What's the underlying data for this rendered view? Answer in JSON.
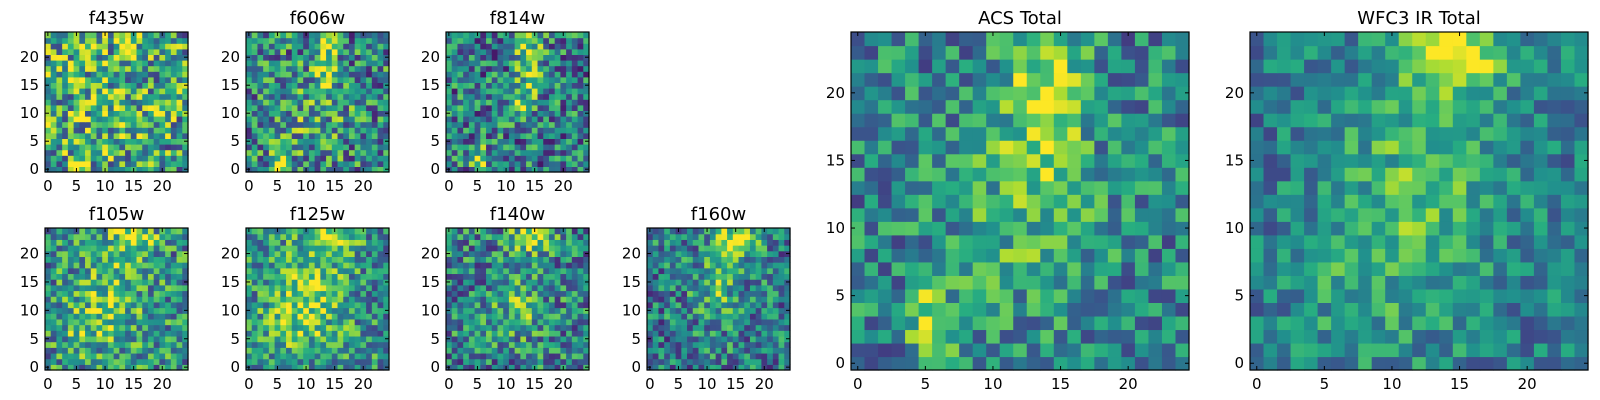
{
  "chart_data": [
    {
      "type": "heatmap",
      "title": "f435w",
      "xticks": [
        "0",
        "5",
        "10",
        "15",
        "20"
      ],
      "yticks": [
        "0",
        "5",
        "10",
        "15",
        "20"
      ],
      "xlim": [
        -0.5,
        24.5
      ],
      "ylim": [
        -0.5,
        24.5
      ],
      "grid": false,
      "colormap": "viridis",
      "pixels": 25,
      "seed": 11,
      "features": [
        {
          "x": 5.5,
          "y": 0.6,
          "w": 0.9,
          "h": 1.6,
          "a": 0.6
        },
        {
          "x": 14.0,
          "y": 22.0,
          "w": 1.2,
          "h": 2.0,
          "a": 0.25
        },
        {
          "x": 10,
          "y": 12,
          "w": 8,
          "h": 8,
          "a": 0.12
        }
      ],
      "base": 0.55,
      "noise": 0.42
    },
    {
      "type": "heatmap",
      "title": "f606w",
      "xticks": [
        "0",
        "5",
        "10",
        "15",
        "20"
      ],
      "yticks": [
        "0",
        "5",
        "10",
        "15",
        "20"
      ],
      "xlim": [
        -0.5,
        24.5
      ],
      "ylim": [
        -0.5,
        24.5
      ],
      "grid": false,
      "colormap": "viridis",
      "pixels": 25,
      "seed": 23,
      "features": [
        {
          "x": 5.5,
          "y": 1.0,
          "w": 0.9,
          "h": 2.0,
          "a": 0.55
        },
        {
          "x": 13.5,
          "y": 20.0,
          "w": 1.4,
          "h": 4.5,
          "a": 0.4
        },
        {
          "x": 10,
          "y": 10,
          "w": 6,
          "h": 6,
          "a": 0.15
        }
      ],
      "base": 0.45,
      "noise": 0.38
    },
    {
      "type": "heatmap",
      "title": "f814w",
      "xticks": [
        "0",
        "5",
        "10",
        "15",
        "20"
      ],
      "yticks": [
        "0",
        "5",
        "10",
        "15",
        "20"
      ],
      "xlim": [
        -0.5,
        24.5
      ],
      "ylim": [
        -0.5,
        24.5
      ],
      "grid": false,
      "colormap": "viridis",
      "pixels": 25,
      "seed": 37,
      "features": [
        {
          "x": 5.5,
          "y": 1.2,
          "w": 0.9,
          "h": 2.2,
          "a": 0.55
        },
        {
          "x": 14.0,
          "y": 20.0,
          "w": 1.5,
          "h": 4.5,
          "a": 0.5
        },
        {
          "x": 12.5,
          "y": 11.0,
          "w": 1.5,
          "h": 2.0,
          "a": 0.3
        }
      ],
      "base": 0.42,
      "noise": 0.36
    },
    {
      "type": "heatmap",
      "title": "f105w",
      "xticks": [
        "0",
        "5",
        "10",
        "15",
        "20"
      ],
      "yticks": [
        "0",
        "5",
        "10",
        "15",
        "20"
      ],
      "xlim": [
        -0.5,
        24.5
      ],
      "ylim": [
        -0.5,
        24.5
      ],
      "grid": false,
      "colormap": "viridis",
      "pixels": 25,
      "seed": 41,
      "features": [
        {
          "x": 15.0,
          "y": 23.0,
          "w": 2.5,
          "h": 1.8,
          "a": 0.45
        },
        {
          "x": 11,
          "y": 13,
          "w": 4,
          "h": 6,
          "a": 0.25
        },
        {
          "x": 6,
          "y": 6,
          "w": 3,
          "h": 3,
          "a": 0.15
        }
      ],
      "base": 0.5,
      "noise": 0.34
    },
    {
      "type": "heatmap",
      "title": "f125w",
      "xticks": [
        "0",
        "5",
        "10",
        "15",
        "20"
      ],
      "yticks": [
        "0",
        "5",
        "10",
        "15",
        "20"
      ],
      "xlim": [
        -0.5,
        24.5
      ],
      "ylim": [
        -0.5,
        24.5
      ],
      "grid": false,
      "colormap": "viridis",
      "pixels": 25,
      "seed": 53,
      "features": [
        {
          "x": 14.5,
          "y": 23.0,
          "w": 2.5,
          "h": 1.8,
          "a": 0.45
        },
        {
          "x": 11,
          "y": 13,
          "w": 4,
          "h": 7,
          "a": 0.3
        },
        {
          "x": 6,
          "y": 8,
          "w": 3,
          "h": 4,
          "a": 0.15
        }
      ],
      "base": 0.5,
      "noise": 0.32
    },
    {
      "type": "heatmap",
      "title": "f140w",
      "xticks": [
        "0",
        "5",
        "10",
        "15",
        "20"
      ],
      "yticks": [
        "0",
        "5",
        "10",
        "15",
        "20"
      ],
      "xlim": [
        -0.5,
        24.5
      ],
      "ylim": [
        -0.5,
        24.5
      ],
      "grid": false,
      "colormap": "viridis",
      "pixels": 25,
      "seed": 67,
      "features": [
        {
          "x": 14.5,
          "y": 23.0,
          "w": 2.5,
          "h": 1.8,
          "a": 0.5
        },
        {
          "x": 12,
          "y": 11,
          "w": 3,
          "h": 4,
          "a": 0.25
        }
      ],
      "base": 0.45,
      "noise": 0.34
    },
    {
      "type": "heatmap",
      "title": "f160w",
      "xticks": [
        "0",
        "5",
        "10",
        "15",
        "20"
      ],
      "yticks": [
        "0",
        "5",
        "10",
        "15",
        "20"
      ],
      "xlim": [
        -0.5,
        24.5
      ],
      "ylim": [
        -0.5,
        24.5
      ],
      "grid": false,
      "colormap": "viridis",
      "pixels": 25,
      "seed": 79,
      "features": [
        {
          "x": 15.0,
          "y": 22.5,
          "w": 2.5,
          "h": 2.2,
          "a": 0.5
        },
        {
          "x": 12,
          "y": 14,
          "w": 3,
          "h": 5,
          "a": 0.25
        }
      ],
      "base": 0.42,
      "noise": 0.32
    },
    {
      "type": "heatmap",
      "title": "ACS Total",
      "xticks": [
        "0",
        "5",
        "10",
        "15",
        "20"
      ],
      "yticks": [
        "0",
        "5",
        "10",
        "15",
        "20"
      ],
      "xlim": [
        -0.5,
        24.5
      ],
      "ylim": [
        -0.5,
        24.5
      ],
      "grid": false,
      "colormap": "viridis",
      "pixels": 25,
      "seed": 97,
      "features": [
        {
          "x": 5.5,
          "y": 1.5,
          "w": 1.0,
          "h": 3.0,
          "a": 0.55
        },
        {
          "x": 14.0,
          "y": 20.5,
          "w": 1.8,
          "h": 4.5,
          "a": 0.45
        },
        {
          "x": 12,
          "y": 12,
          "w": 4,
          "h": 6,
          "a": 0.2
        }
      ],
      "base": 0.45,
      "noise": 0.28
    },
    {
      "type": "heatmap",
      "title": "WFC3 IR Total",
      "xticks": [
        "0",
        "5",
        "10",
        "15",
        "20"
      ],
      "yticks": [
        "0",
        "5",
        "10",
        "15",
        "20"
      ],
      "xlim": [
        -0.5,
        24.5
      ],
      "ylim": [
        -0.5,
        24.5
      ],
      "grid": false,
      "colormap": "viridis",
      "pixels": 25,
      "seed": 113,
      "features": [
        {
          "x": 15.0,
          "y": 23.0,
          "w": 2.8,
          "h": 2.0,
          "a": 0.5
        },
        {
          "x": 12,
          "y": 13,
          "w": 4,
          "h": 7,
          "a": 0.28
        },
        {
          "x": 6,
          "y": 6,
          "w": 3,
          "h": 4,
          "a": 0.12
        }
      ],
      "base": 0.42,
      "noise": 0.22
    }
  ]
}
